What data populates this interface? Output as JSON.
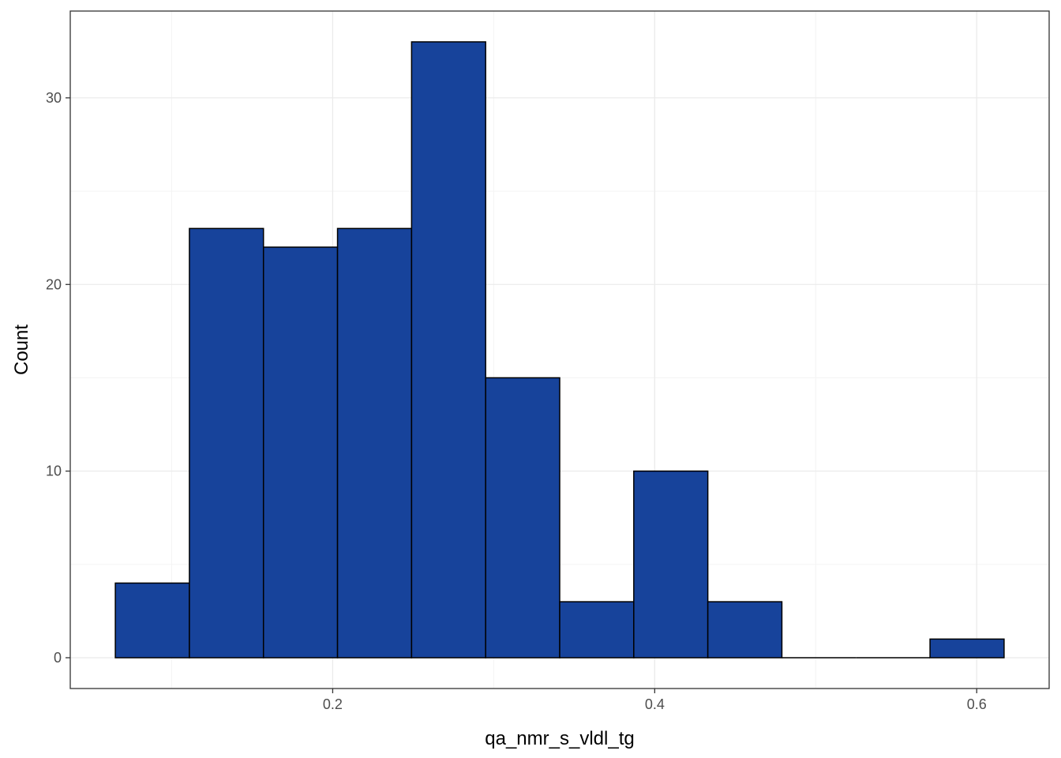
{
  "chart_data": {
    "type": "bar",
    "title": "",
    "xlabel": "qa_nmr_s_vldl_tg",
    "ylabel": "Count",
    "bin_edges": [
      0.065,
      0.111,
      0.157,
      0.203,
      0.249,
      0.295,
      0.341,
      0.387,
      0.433,
      0.479,
      0.525,
      0.571,
      0.617
    ],
    "values": [
      4,
      23,
      22,
      23,
      33,
      15,
      3,
      10,
      3,
      0,
      0,
      1
    ],
    "xlim": [
      0.037,
      0.645
    ],
    "ylim": [
      -1.65,
      34.65
    ],
    "x_ticks": [
      0.2,
      0.4,
      0.6
    ],
    "x_tick_labels": [
      "0.2",
      "0.4",
      "0.6"
    ],
    "y_ticks": [
      0,
      10,
      20,
      30
    ],
    "y_tick_labels": [
      "0",
      "10",
      "20",
      "30"
    ],
    "grid": true,
    "legend": "none",
    "colors": {
      "bar_fill": "#17439B",
      "bar_outline": "#000000",
      "grid_major": "#EBEBEB",
      "grid_minor": "#F4F4F4",
      "panel_border": "#333333"
    }
  }
}
